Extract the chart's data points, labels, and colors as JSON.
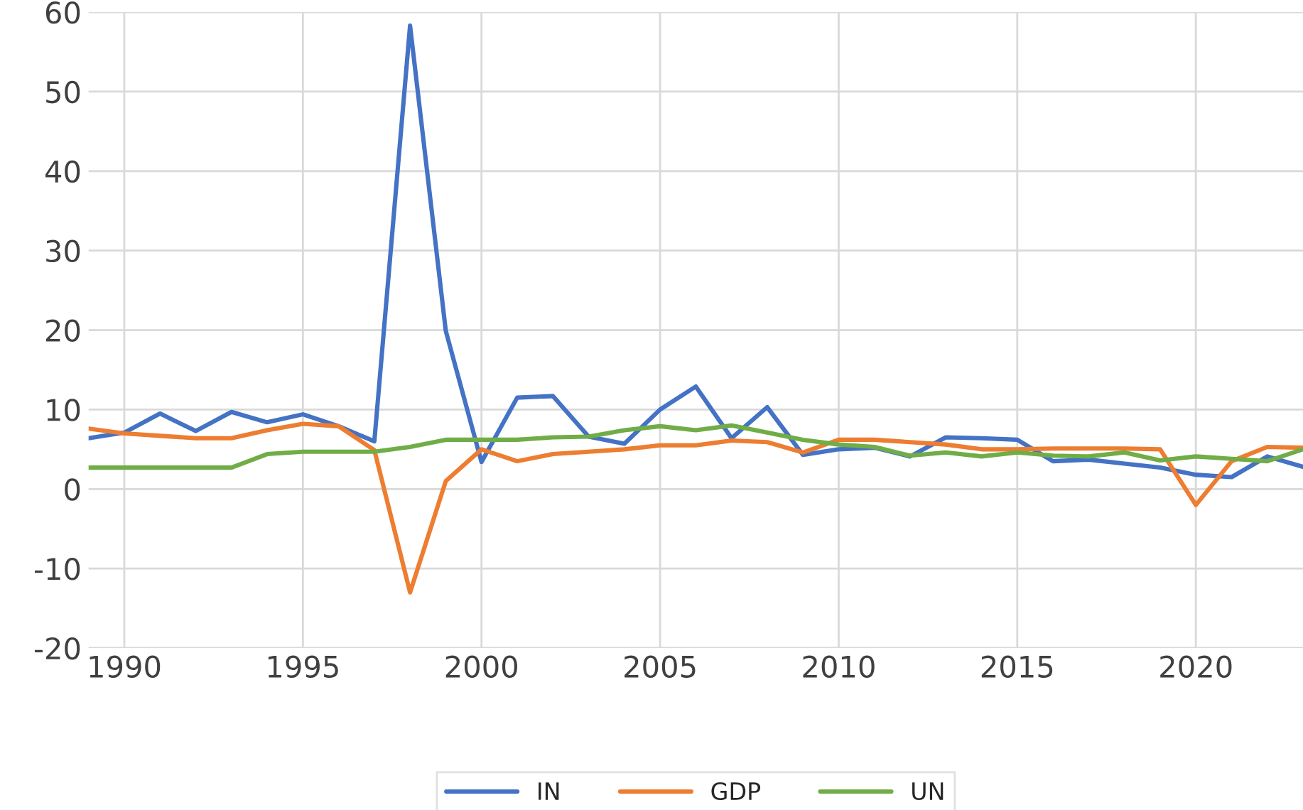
{
  "chart_data": {
    "type": "line",
    "x": [
      1989,
      1990,
      1991,
      1992,
      1993,
      1994,
      1995,
      1996,
      1997,
      1998,
      1999,
      2000,
      2001,
      2002,
      2003,
      2004,
      2005,
      2006,
      2007,
      2008,
      2009,
      2010,
      2011,
      2012,
      2013,
      2014,
      2015,
      2016,
      2017,
      2018,
      2019,
      2020,
      2021,
      2022,
      2023
    ],
    "series": [
      {
        "name": "IN",
        "color": "#4472c4",
        "values": [
          6.4,
          7.1,
          9.5,
          7.3,
          9.7,
          8.4,
          9.4,
          7.9,
          6.0,
          58.3,
          19.9,
          3.4,
          11.5,
          11.7,
          6.6,
          5.7,
          10.0,
          12.9,
          6.4,
          10.3,
          4.3,
          5.0,
          5.2,
          4.1,
          6.5,
          6.4,
          6.2,
          3.5,
          3.7,
          3.2,
          2.7,
          1.8,
          1.5,
          4.1,
          2.8
        ]
      },
      {
        "name": "GDP",
        "color": "#ed7d31",
        "values": [
          7.6,
          7.0,
          6.7,
          6.4,
          6.4,
          7.4,
          8.2,
          7.9,
          4.9,
          -13.0,
          1.0,
          5.0,
          3.5,
          4.4,
          4.7,
          5.0,
          5.5,
          5.5,
          6.1,
          5.9,
          4.6,
          6.2,
          6.2,
          5.9,
          5.6,
          5.0,
          5.0,
          5.1,
          5.1,
          5.1,
          5.0,
          -2.0,
          3.5,
          5.3,
          5.2
        ]
      },
      {
        "name": "UN",
        "color": "#70ad47",
        "values": [
          2.7,
          2.7,
          2.7,
          2.7,
          2.7,
          4.4,
          4.7,
          4.7,
          4.7,
          5.3,
          6.2,
          6.2,
          6.2,
          6.5,
          6.6,
          7.4,
          7.9,
          7.4,
          8.0,
          7.1,
          6.2,
          5.6,
          5.3,
          4.2,
          4.6,
          4.1,
          4.6,
          4.2,
          4.1,
          4.6,
          3.6,
          4.1,
          3.8,
          3.5,
          5.0
        ]
      }
    ],
    "xlim": [
      1989,
      2023
    ],
    "xticks": [
      1990,
      1995,
      2000,
      2005,
      2010,
      2015,
      2020
    ],
    "ylim": [
      -20,
      60
    ],
    "yticks": [
      -20,
      -10,
      0,
      10,
      20,
      30,
      40,
      50,
      60
    ],
    "grid": true,
    "legend": "bottom",
    "marker": "none",
    "line_style": "solid"
  }
}
